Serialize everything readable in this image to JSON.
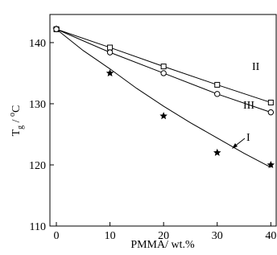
{
  "chart_data": {
    "type": "scatter",
    "x_label": "PMMA/ wt.%",
    "y_label": {
      "main": "T",
      "sub": "g",
      "sep": " / ",
      "sup": "o",
      "unit": "C"
    },
    "xlim": [
      -1.2,
      41
    ],
    "ylim": [
      110,
      144.6
    ],
    "xticks": [
      0,
      10,
      20,
      30,
      40
    ],
    "yticks": [
      110,
      120,
      130,
      140
    ],
    "series": [
      {
        "name": "I",
        "color": "#000000",
        "marker": "star",
        "x": [
          0,
          10,
          20,
          30,
          40
        ],
        "values": [
          142.2,
          135,
          128,
          122,
          120
        ]
      },
      {
        "name": "II",
        "color": "#000000",
        "marker": "square",
        "x": [
          0,
          10,
          20,
          30,
          40
        ],
        "values": [
          142.2,
          139.2,
          136.1,
          133.1,
          130.2
        ]
      },
      {
        "name": "III",
        "color": "#000000",
        "marker": "circle",
        "x": [
          0,
          10,
          20,
          30,
          40
        ],
        "values": [
          142.2,
          138.4,
          135.0,
          131.6,
          128.6
        ]
      }
    ],
    "fit_curve": {
      "x": [
        0,
        5,
        10,
        15,
        20,
        25,
        30,
        35,
        40
      ],
      "values": [
        142.2,
        138.7,
        135.7,
        132.5,
        129.6,
        126.9,
        124.4,
        121.9,
        119.6
      ]
    }
  }
}
